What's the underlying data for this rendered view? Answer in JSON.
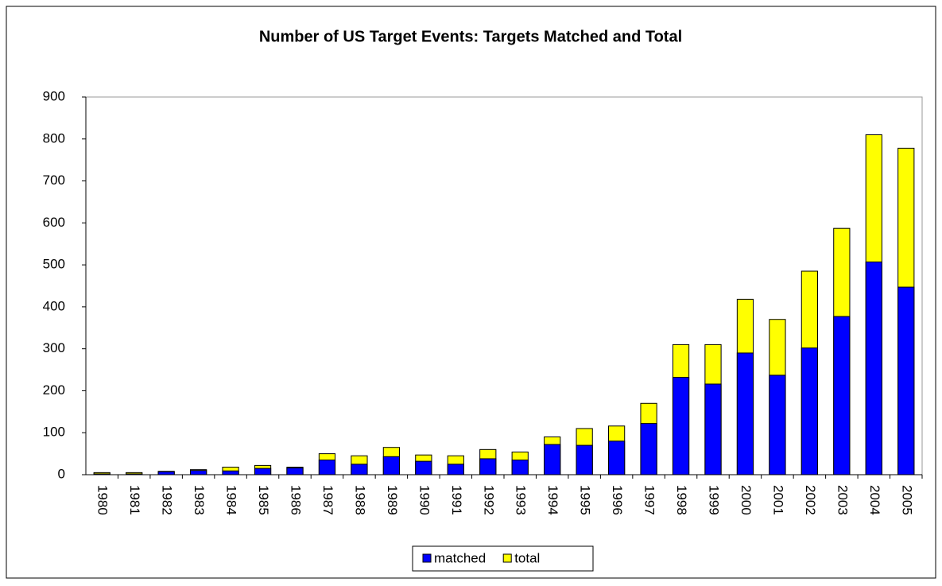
{
  "chart_data": {
    "type": "bar",
    "overlap": true,
    "title": "Number of US Target Events: Targets Matched and Total",
    "categories": [
      "1980",
      "1981",
      "1982",
      "1983",
      "1984",
      "1985",
      "1986",
      "1987",
      "1988",
      "1989",
      "1990",
      "1991",
      "1992",
      "1993",
      "1994",
      "1995",
      "1996",
      "1997",
      "1998",
      "1999",
      "2000",
      "2001",
      "2002",
      "2003",
      "2004",
      "2005"
    ],
    "series": [
      {
        "name": "total",
        "color": "#ffff00",
        "values": [
          5,
          5,
          8,
          12,
          18,
          22,
          18,
          50,
          45,
          65,
          47,
          45,
          60,
          54,
          90,
          110,
          116,
          170,
          310,
          310,
          418,
          370,
          485,
          587,
          810,
          778
        ]
      },
      {
        "name": "matched",
        "color": "#0000ff",
        "values": [
          2,
          2,
          7,
          10,
          9,
          15,
          16,
          35,
          25,
          43,
          32,
          25,
          38,
          35,
          72,
          70,
          80,
          122,
          232,
          216,
          290,
          237,
          302,
          377,
          507,
          447
        ]
      }
    ],
    "legend_order": [
      "matched",
      "total"
    ],
    "ylim": [
      0,
      900
    ],
    "yticks": [
      0,
      100,
      200,
      300,
      400,
      500,
      600,
      700,
      800,
      900
    ],
    "grid": false
  }
}
